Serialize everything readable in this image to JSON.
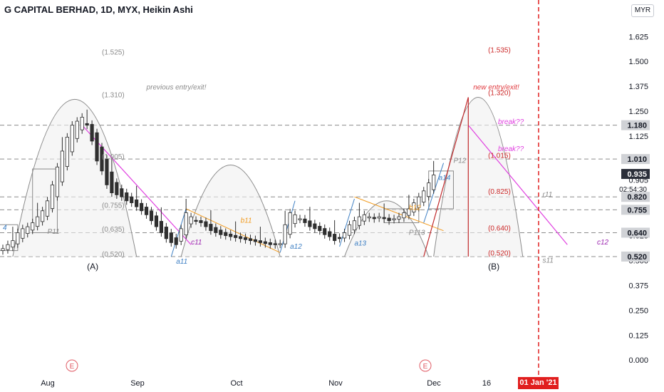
{
  "header": {
    "title": "G CAPITAL BERHAD, 1D, MYX, Heikin Ashi",
    "currency": "MYR"
  },
  "chart_data": {
    "type": "candlestick",
    "title": "G CAPITAL BERHAD, 1D, MYX, Heikin Ashi",
    "ylim": [
      -0.06,
      1.73
    ],
    "y_ticks": [
      "0.000",
      "0.125",
      "0.250",
      "0.375",
      "0.500",
      "0.625",
      "0.755",
      "0.820",
      "0.905",
      "1.010",
      "1.125",
      "1.180",
      "1.250",
      "1.375",
      "1.500",
      "1.625"
    ],
    "price_tags": [
      {
        "label": "1.180",
        "y": 1.18,
        "style": "gray"
      },
      {
        "label": "1.010",
        "y": 1.01,
        "style": "gray"
      },
      {
        "label": "0.935",
        "y": 0.935,
        "style": "dark"
      },
      {
        "label": "02:54:30",
        "y": 0.86,
        "style": "text"
      },
      {
        "label": "0.820",
        "y": 0.82,
        "style": "gray"
      },
      {
        "label": "0.755",
        "y": 0.755,
        "style": "gray"
      },
      {
        "label": "0.640",
        "y": 0.64,
        "style": "gray"
      },
      {
        "label": "0.520",
        "y": 0.52,
        "style": "gray"
      }
    ],
    "x_ticks": [
      "Aug",
      "Sep",
      "Oct",
      "Nov",
      "Dec",
      "16"
    ],
    "x_tick_idx": [
      6,
      27,
      47,
      67,
      87,
      98
    ],
    "n_bars": 116,
    "hlines": [
      1.18,
      1.01,
      0.82,
      0.755,
      0.64,
      0.52
    ],
    "candles": {
      "close": [
        0.56,
        0.58,
        0.6,
        0.64,
        0.66,
        0.67,
        0.69,
        0.72,
        0.75,
        0.8,
        0.88,
        0.97,
        1.05,
        1.12,
        1.18,
        1.2,
        1.22,
        1.18,
        1.1,
        1.0,
        0.95,
        0.88,
        0.84,
        0.83,
        0.82,
        0.8,
        0.79,
        0.77,
        0.75,
        0.73,
        0.7,
        0.67,
        0.64,
        0.61,
        0.59,
        0.58,
        0.66,
        0.74,
        0.72,
        0.7,
        0.69,
        0.67,
        0.65,
        0.64,
        0.63,
        0.625,
        0.62,
        0.615,
        0.61,
        0.605,
        0.6,
        0.595,
        0.59,
        0.585,
        0.58,
        0.58,
        0.585,
        0.68,
        0.74,
        0.73,
        0.71,
        0.69,
        0.67,
        0.66,
        0.65,
        0.63,
        0.62,
        0.6,
        0.61,
        0.64,
        0.68,
        0.7,
        0.72,
        0.73,
        0.72,
        0.71,
        0.72,
        0.71,
        0.7,
        0.71,
        0.72,
        0.74,
        0.76,
        0.79,
        0.82,
        0.85,
        0.89,
        0.93
      ],
      "up_from": [
        0,
        11,
        36,
        57,
        69
      ],
      "up_to": [
        16,
        16,
        37,
        58,
        87
      ],
      "wick_up": [
        0.02,
        0.06
      ],
      "wick_dn": [
        0.02,
        0.05
      ]
    },
    "annotations": [
      {
        "text": "previous entry/exit!",
        "x": 29,
        "y": 1.36,
        "color": "#8a8a8a",
        "italic": true
      },
      {
        "text": "new entry/exit!",
        "x": 95,
        "y": 1.36,
        "color": "#e0393e",
        "italic": true
      },
      {
        "text": "(1.525)",
        "x": 20,
        "y": 1.535,
        "color": "#8a8a8a"
      },
      {
        "text": "(1.310)",
        "x": 20,
        "y": 1.32,
        "color": "#8a8a8a"
      },
      {
        "text": "(1.005)",
        "x": 20,
        "y": 1.01,
        "color": "#8a8a8a"
      },
      {
        "text": "(0.755)",
        "x": 20,
        "y": 0.765,
        "color": "#8a8a8a"
      },
      {
        "text": "(0.635)",
        "x": 20,
        "y": 0.645,
        "color": "#8a8a8a"
      },
      {
        "text": "(0.520)",
        "x": 20,
        "y": 0.52,
        "color": "#8a8a8a"
      },
      {
        "text": "(1.535)",
        "x": 98,
        "y": 1.545,
        "color": "#cc2a2a"
      },
      {
        "text": "(1.320)",
        "x": 98,
        "y": 1.33,
        "color": "#cc2a2a"
      },
      {
        "text": "(1.015)",
        "x": 98,
        "y": 1.015,
        "color": "#cc2a2a"
      },
      {
        "text": "(0.825)",
        "x": 98,
        "y": 0.835,
        "color": "#cc2a2a"
      },
      {
        "text": "(0.640)",
        "x": 98,
        "y": 0.65,
        "color": "#cc2a2a"
      },
      {
        "text": "(0.520)",
        "x": 98,
        "y": 0.525,
        "color": "#cc2a2a"
      },
      {
        "text": "P11",
        "x": 9,
        "y": 0.635,
        "color": "#8a8a8a",
        "italic": true
      },
      {
        "text": "c11",
        "x": 38,
        "y": 0.58,
        "color": "#9c27b0",
        "italic": true
      },
      {
        "text": "a11",
        "x": 35,
        "y": 0.485,
        "color": "#3f80c4",
        "italic": true
      },
      {
        "text": "b11",
        "x": 48,
        "y": 0.69,
        "color": "#f29b1f",
        "italic": true
      },
      {
        "text": "a12",
        "x": 58,
        "y": 0.56,
        "color": "#3f80c4",
        "italic": true
      },
      {
        "text": "a13",
        "x": 71,
        "y": 0.575,
        "color": "#3f80c4",
        "italic": true
      },
      {
        "text": "b12",
        "x": 82,
        "y": 0.755,
        "color": "#f29b1f",
        "italic": true
      },
      {
        "text": "P113",
        "x": 82,
        "y": 0.63,
        "color": "#8a8a8a",
        "italic": true
      },
      {
        "text": "a14",
        "x": 88,
        "y": 0.905,
        "color": "#3f80c4",
        "italic": true
      },
      {
        "text": "P12",
        "x": 91,
        "y": 0.99,
        "color": "#8a8a8a",
        "italic": true
      },
      {
        "text": "break??",
        "x": 100,
        "y": 1.185,
        "color": "#e040e0",
        "italic": true
      },
      {
        "text": "break??",
        "x": 100,
        "y": 1.05,
        "color": "#e040e0",
        "italic": true
      },
      {
        "text": "r11",
        "x": 109,
        "y": 0.82,
        "color": "#8a8a8a",
        "italic": true
      },
      {
        "text": "s11",
        "x": 109,
        "y": 0.49,
        "color": "#8a8a8a",
        "italic": true
      },
      {
        "text": "c12",
        "x": 120,
        "y": 0.58,
        "color": "#9c27b0",
        "italic": true
      },
      {
        "text": "4",
        "x": 0,
        "y": 0.655,
        "color": "#3f80c4",
        "italic": true
      },
      {
        "text": "(A)",
        "x": 17,
        "y": 0.455,
        "color": "#131722"
      },
      {
        "text": "(B)",
        "x": 98,
        "y": 0.455,
        "color": "#131722"
      }
    ],
    "vline_date": "01 Jan '21",
    "earnings_marker": "E"
  },
  "colors": {
    "bull": "#ffffff",
    "bear": "#2f2f2f",
    "grid_dash": "#8c8c8c",
    "red": "#e11f1f",
    "magenta": "#e040e0",
    "orange": "#f29b1f",
    "blue": "#3f80c4"
  }
}
